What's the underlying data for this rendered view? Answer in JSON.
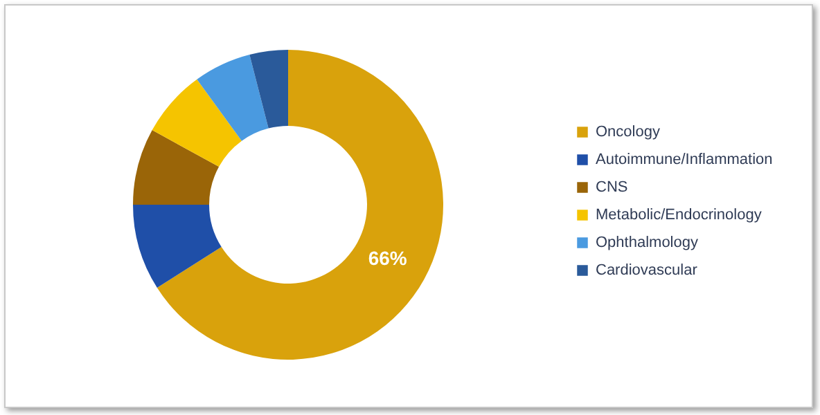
{
  "chart_data": {
    "type": "donut",
    "categories": [
      "Oncology",
      "Autoimmune/Inflammation",
      "CNS",
      "Metabolic/Endocrinology",
      "Ophthalmology",
      "Cardiovascular"
    ],
    "values": [
      66,
      9,
      8,
      7,
      6,
      4
    ],
    "colors": [
      "#d9a20c",
      "#1f4fa8",
      "#9a6508",
      "#f5c400",
      "#4a9ae0",
      "#2a5a9a"
    ],
    "value_labels": [
      "66%",
      null,
      null,
      null,
      null,
      null
    ],
    "legend": "right"
  }
}
